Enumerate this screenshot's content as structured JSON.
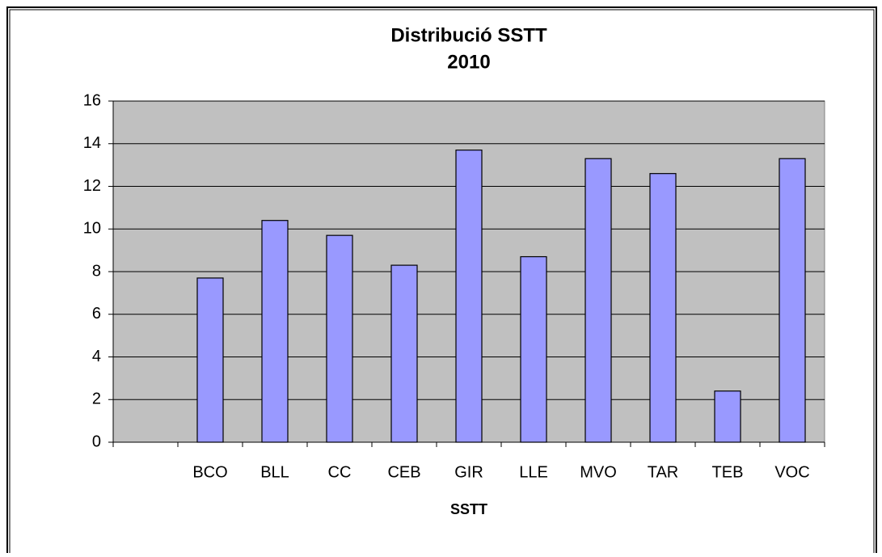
{
  "chart_data": {
    "type": "bar",
    "title": [
      "Distribució SSTT",
      "2010"
    ],
    "x_label": "SSTT",
    "categories": [
      null,
      "BCO",
      "BLL",
      "CC",
      "CEB",
      "GIR",
      "LLE",
      "MVO",
      "TAR",
      "TEB",
      "VOC"
    ],
    "values": [
      null,
      7.7,
      10.4,
      9.7,
      8.3,
      13.7,
      8.7,
      13.3,
      12.6,
      2.4,
      13.3
    ],
    "color": "#9999ff",
    "ylim": [
      0,
      16
    ],
    "yticks": [
      0,
      2,
      4,
      6,
      8,
      10,
      12,
      14,
      16
    ],
    "grid": true
  }
}
